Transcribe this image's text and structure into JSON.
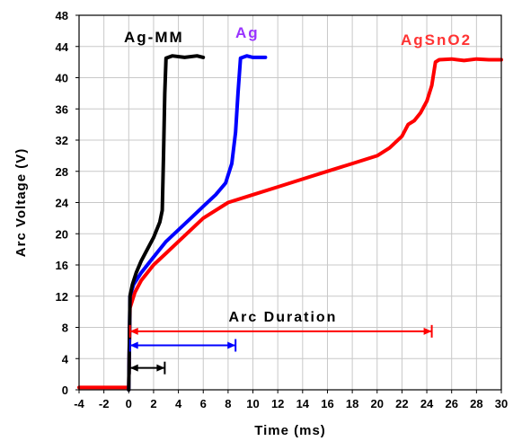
{
  "chart_data": {
    "type": "line",
    "title": "",
    "xlabel": "Time (ms)",
    "ylabel": "Arc Voltage (V)",
    "xlim": [
      -4,
      30
    ],
    "ylim": [
      0,
      48
    ],
    "x_ticks": [
      -4,
      -2,
      0,
      2,
      4,
      6,
      8,
      10,
      12,
      14,
      16,
      18,
      20,
      22,
      24,
      26,
      28,
      30
    ],
    "y_ticks": [
      0,
      4,
      8,
      12,
      16,
      20,
      24,
      28,
      32,
      36,
      40,
      44,
      48
    ],
    "x_tick_labels": [
      "-4",
      "-2",
      "0",
      "2",
      "4",
      "6",
      "8",
      "10",
      "12",
      "14",
      "16",
      "18",
      "20",
      "22",
      "24",
      "26",
      "28",
      "30"
    ],
    "y_tick_labels": [
      "0",
      "4",
      "8",
      "12",
      "16",
      "20",
      "24",
      "28",
      "32",
      "36",
      "40",
      "44",
      "48"
    ],
    "grid": true,
    "series": [
      {
        "name": "Ag-MM",
        "color": "#000000",
        "x": [
          0.0,
          0.1,
          0.3,
          0.6,
          1.0,
          1.5,
          2.0,
          2.5,
          2.7,
          2.8,
          2.9,
          3.0,
          3.5,
          4.5,
          5.5,
          6.0
        ],
        "y": [
          0.0,
          12.0,
          13.5,
          15.0,
          16.5,
          18.0,
          19.5,
          21.5,
          23.0,
          30.0,
          38.0,
          42.5,
          42.8,
          42.6,
          42.8,
          42.6
        ]
      },
      {
        "name": "Ag",
        "color": "#0000ff",
        "x": [
          0.0,
          0.1,
          0.4,
          1.0,
          2.0,
          3.0,
          4.0,
          5.0,
          6.0,
          7.0,
          7.8,
          8.3,
          8.6,
          8.8,
          9.0,
          9.5,
          10.0,
          11.0
        ],
        "y": [
          0.0,
          12.0,
          13.5,
          15.0,
          17.0,
          19.0,
          20.5,
          22.0,
          23.5,
          25.0,
          26.5,
          29.0,
          33.0,
          38.0,
          42.5,
          42.8,
          42.6,
          42.6
        ]
      },
      {
        "name": "AgSnO2",
        "color": "#ff0000",
        "x": [
          -4.0,
          -2.0,
          -0.5,
          0.0,
          0.1,
          0.5,
          1.0,
          2.0,
          3.0,
          4.0,
          5.0,
          6.0,
          8.0,
          10.0,
          12.0,
          14.0,
          16.0,
          18.0,
          20.0,
          21.0,
          22.0,
          22.5,
          23.0,
          23.5,
          24.0,
          24.4,
          24.7,
          25.0,
          26.0,
          27.0,
          28.0,
          29.0,
          30.0
        ],
        "y": [
          0.3,
          0.3,
          0.3,
          0.3,
          10.5,
          12.5,
          14.0,
          16.0,
          17.5,
          19.0,
          20.5,
          22.0,
          24.0,
          25.0,
          26.0,
          27.0,
          28.0,
          29.0,
          30.0,
          31.0,
          32.5,
          34.0,
          34.5,
          35.5,
          37.0,
          39.0,
          42.0,
          42.3,
          42.4,
          42.2,
          42.4,
          42.3,
          42.3
        ]
      }
    ],
    "series_labels": [
      {
        "text": "Ag-MM",
        "color": "#000000"
      },
      {
        "text": "Ag",
        "color": "#9933ff"
      },
      {
        "text": "AgSnO2",
        "color": "#ff3333"
      }
    ],
    "annotations": [
      {
        "text": "Arc Duration"
      }
    ],
    "duration_arrows": [
      {
        "series": "AgSnO2",
        "color": "#ff0000",
        "y": 7.5,
        "x0": 0.1,
        "x1": 24.4
      },
      {
        "series": "Ag",
        "color": "#0000ff",
        "y": 5.7,
        "x0": 0.1,
        "x1": 8.6
      },
      {
        "series": "Ag-MM",
        "color": "#000000",
        "y": 2.8,
        "x0": 0.1,
        "x1": 2.9
      }
    ]
  }
}
